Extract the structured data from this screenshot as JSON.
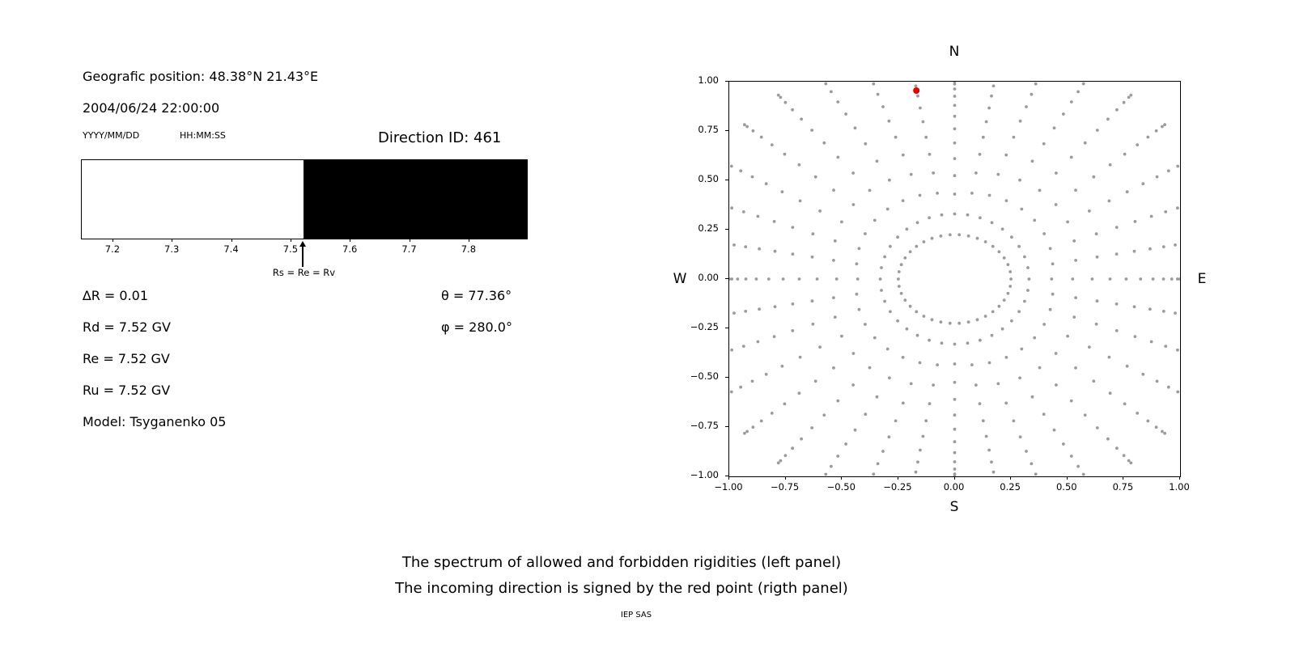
{
  "left_panel": {
    "geo_position": "Geografic position: 48.38°N 21.43°E",
    "datetime": "2004/06/24 22:00:00",
    "date_format": "YYYY/MM/DD",
    "time_format": "HH:MM:SS",
    "direction_id": "Direction ID: 461",
    "params": [
      "∆R = 0.01",
      "Rd = 7.52 GV",
      "Re = 7.52 GV",
      "Ru = 7.52 GV",
      "Model: Tsyganenko 05"
    ],
    "theta": "θ = 77.36°",
    "phi": "φ = 280.0°"
  },
  "right_panel": {
    "compass": {
      "north": "N",
      "east": "E",
      "south": "S",
      "west": "W"
    }
  },
  "caption": {
    "line1": "The spectrum of allowed and forbidden rigidities (left panel)",
    "line2": "The incoming direction is signed by the red point (rigth panel)",
    "credit": "IEP SAS"
  },
  "chart_data": [
    {
      "type": "bar",
      "title": "Spectrum of allowed (white) and forbidden (black) rigidities",
      "x_range": [
        7.147,
        7.897
      ],
      "x_ticks": [
        7.2,
        7.3,
        7.4,
        7.5,
        7.6,
        7.7,
        7.8
      ],
      "threshold": 7.52,
      "segments": [
        {
          "from": 7.147,
          "to": 7.52,
          "color": "#ffffff",
          "label": "allowed"
        },
        {
          "from": 7.52,
          "to": 7.897,
          "color": "#000000",
          "label": "forbidden"
        }
      ],
      "annotation": {
        "x": 7.52,
        "label": "Rs = Re = Rv"
      }
    },
    {
      "type": "scatter",
      "title": "Incoming direction map (N/E/S/W)",
      "xlim": [
        -1,
        1
      ],
      "ylim": [
        -1,
        1
      ],
      "x_ticks": [
        -1.0,
        -0.75,
        -0.5,
        -0.25,
        0.0,
        0.25,
        0.5,
        0.75,
        1.0
      ],
      "y_ticks": [
        -1.0,
        -0.75,
        -0.5,
        -0.25,
        0.0,
        0.25,
        0.5,
        0.75,
        1.0
      ],
      "compass": {
        "top": "N",
        "right": "E",
        "bottom": "S",
        "left": "W"
      },
      "grey_points": {
        "color": "#9b9b9b",
        "marker_size": 1.9,
        "spokes": {
          "count": 36,
          "step_deg": 10,
          "r_inner": 0.33,
          "r_outer_base": 1.0,
          "r_outer_diag_extra": 0.22,
          "points_per_spoke": 12,
          "outer_cluster_exp": 1.7
        },
        "inner_ring": {
          "rx": 0.25,
          "ry": 0.225,
          "count": 38
        }
      },
      "red_point": {
        "x": -0.17,
        "y": 0.955,
        "color": "#e60000",
        "size": 4
      }
    }
  ]
}
